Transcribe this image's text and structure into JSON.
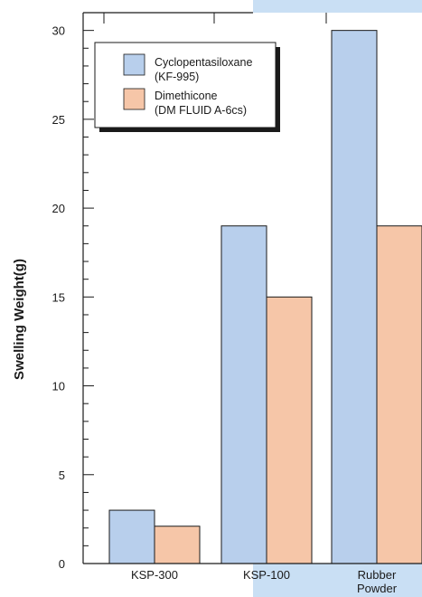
{
  "colors": {
    "series_1": "#b8cfec",
    "series_2": "#f6c6a8",
    "background_panel": "#c9dff4",
    "axis": "#1a1a1a"
  },
  "chart_data": {
    "type": "bar",
    "categories": [
      [
        "KSP-300"
      ],
      [
        "KSP-100"
      ],
      [
        "Rubber",
        "Powder"
      ]
    ],
    "series": [
      {
        "name": [
          "Cyclopentasiloxane",
          "(KF-995)"
        ],
        "values": [
          3,
          19,
          30
        ]
      },
      {
        "name": [
          "Dimethicone",
          "(DM FLUID A-6cs)"
        ],
        "values": [
          2.1,
          15,
          19
        ]
      }
    ],
    "ylabel": "Swelling Weight(g)",
    "ylim": [
      0,
      31
    ],
    "yticks": [
      0,
      5,
      10,
      15,
      20,
      25,
      30
    ],
    "ytick_minor_step": 1,
    "grid": false,
    "legend_position": "top-left"
  }
}
